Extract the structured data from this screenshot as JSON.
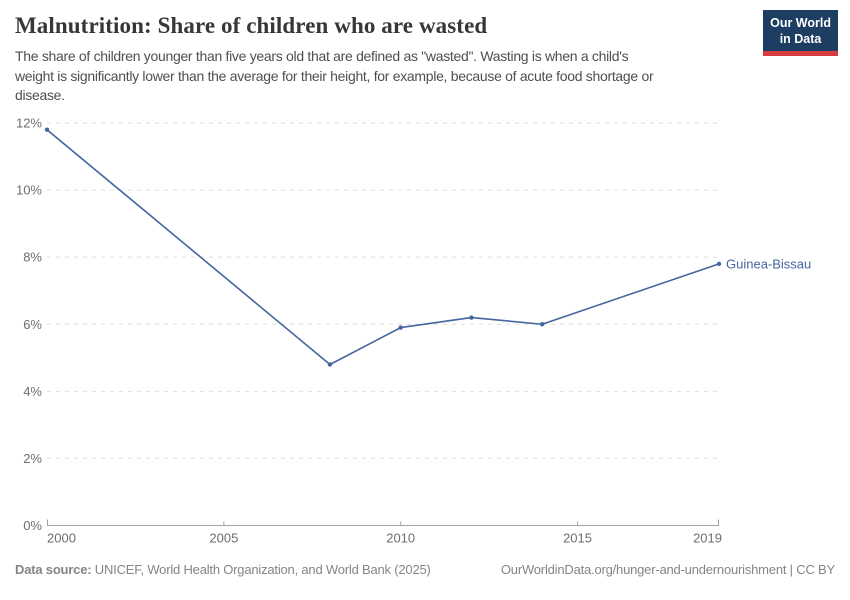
{
  "header": {
    "title": "Malnutrition: Share of children who are wasted",
    "logo": {
      "line1": "Our World",
      "line2": "in Data"
    }
  },
  "subtitle_lines": [
    "The share of children younger than five years old that are defined as \"wasted\". Wasting is when a child's",
    "weight is significantly lower than the average for their height, for example, because of acute food shortage or",
    "disease."
  ],
  "chart_data": {
    "type": "line",
    "title": "Malnutrition: Share of children who are wasted",
    "series": [
      {
        "name": "Guinea-Bissau",
        "color": "#44659e",
        "points": [
          {
            "x": 2000,
            "y": 11.8
          },
          {
            "x": 2008,
            "y": 4.8
          },
          {
            "x": 2010,
            "y": 5.9
          },
          {
            "x": 2012,
            "y": 6.2
          },
          {
            "x": 2014,
            "y": 6.0
          },
          {
            "x": 2019,
            "y": 7.8
          }
        ]
      }
    ],
    "xlabel": "",
    "ylabel": "",
    "xlim": [
      2000,
      2019
    ],
    "ylim": [
      0,
      12
    ],
    "x_ticks": [
      2000,
      2005,
      2010,
      2015,
      2019
    ],
    "y_ticks": [
      0,
      2,
      4,
      6,
      8,
      10,
      12
    ],
    "y_tick_suffix": "%",
    "grid": "horizontal-dashed",
    "legend_position": "end-of-line-label"
  },
  "footer": {
    "source_label": "Data source:",
    "source_text": "UNICEF, World Health Organization, and World Bank (2025)",
    "link_text": "OurWorldinData.org/hunger-and-undernourishment | CC BY"
  },
  "colors": {
    "line": "#44659e",
    "title": "#383636",
    "subtitle": "#4f4f4f",
    "axis_label": "#6e6e6e",
    "gridline": "#dedede",
    "axis_line": "#a3a3a3",
    "logo_bg": "#1d3d63",
    "logo_accent": "#d73c3c",
    "footer_text": "#858585"
  }
}
